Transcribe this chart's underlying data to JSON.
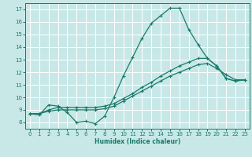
{
  "title": "",
  "xlabel": "Humidex (Indice chaleur)",
  "bg_color": "#c8e8e8",
  "grid_color": "#ffffff",
  "line_color": "#1a7a6a",
  "xlim": [
    -0.5,
    23.5
  ],
  "ylim": [
    7.5,
    17.5
  ],
  "xticks": [
    0,
    1,
    2,
    3,
    4,
    5,
    6,
    7,
    8,
    9,
    10,
    11,
    12,
    13,
    14,
    15,
    16,
    17,
    18,
    19,
    20,
    21,
    22,
    23
  ],
  "yticks": [
    8,
    9,
    10,
    11,
    12,
    13,
    14,
    15,
    16,
    17
  ],
  "line1_x": [
    0,
    1,
    2,
    3,
    4,
    5,
    6,
    7,
    8,
    9,
    10,
    11,
    12,
    13,
    14,
    15,
    16,
    17,
    18,
    19,
    20,
    21,
    22,
    23
  ],
  "line1_y": [
    8.7,
    8.6,
    9.4,
    9.3,
    8.8,
    8.0,
    8.1,
    7.9,
    8.5,
    10.0,
    11.7,
    13.2,
    14.7,
    15.9,
    16.5,
    17.1,
    17.1,
    15.4,
    14.2,
    13.1,
    12.5,
    11.5,
    11.3,
    11.4
  ],
  "line2_x": [
    0,
    1,
    2,
    3,
    4,
    5,
    6,
    7,
    8,
    9,
    10,
    11,
    12,
    13,
    14,
    15,
    16,
    17,
    18,
    19,
    20,
    21,
    22,
    23
  ],
  "line2_y": [
    8.7,
    8.7,
    9.0,
    9.2,
    9.2,
    9.2,
    9.2,
    9.2,
    9.3,
    9.5,
    9.9,
    10.3,
    10.8,
    11.2,
    11.7,
    12.1,
    12.5,
    12.8,
    13.1,
    13.1,
    12.5,
    11.5,
    11.3,
    11.4
  ],
  "line3_x": [
    0,
    1,
    2,
    3,
    4,
    5,
    6,
    7,
    8,
    9,
    10,
    11,
    12,
    13,
    14,
    15,
    16,
    17,
    18,
    19,
    20,
    21,
    22,
    23
  ],
  "line3_y": [
    8.7,
    8.7,
    8.9,
    9.0,
    9.0,
    9.0,
    9.0,
    9.0,
    9.1,
    9.3,
    9.7,
    10.1,
    10.5,
    10.9,
    11.3,
    11.7,
    12.0,
    12.3,
    12.6,
    12.7,
    12.3,
    11.8,
    11.4,
    11.4
  ]
}
